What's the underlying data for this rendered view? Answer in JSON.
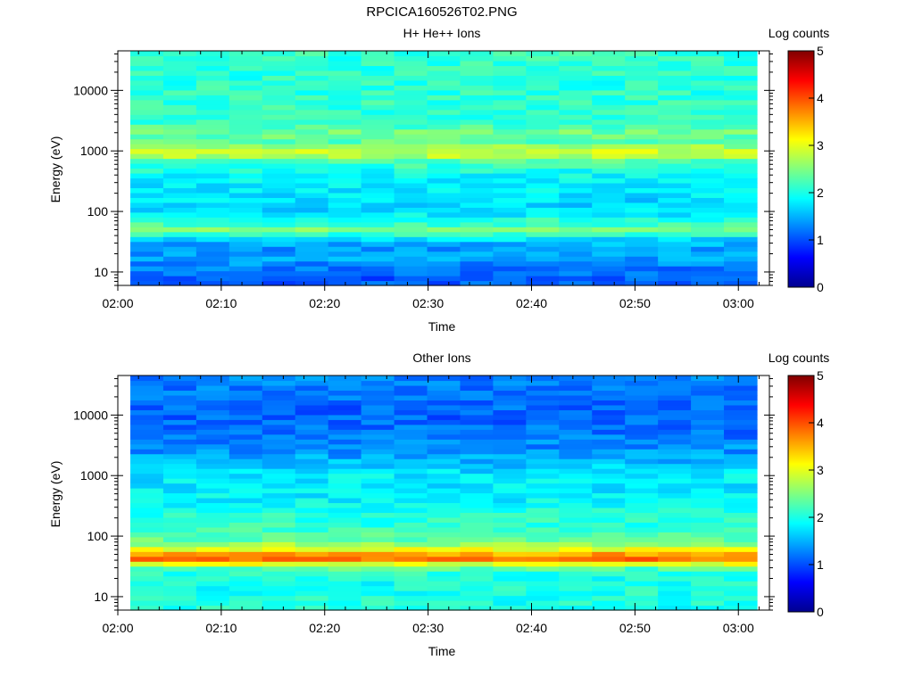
{
  "figure": {
    "title": "RPCICA160526T02.PNG"
  },
  "colormap_stops": [
    "#00008f",
    "#0000ff",
    "#0080ff",
    "#00ffff",
    "#80ff80",
    "#ffff00",
    "#ff8000",
    "#ff0000",
    "#800000"
  ],
  "chart_data": [
    {
      "type": "heatmap",
      "title": "H+ He++ Ions",
      "xlabel": "Time",
      "ylabel": "Energy (eV)",
      "colorbar_label": "Log counts",
      "colorbar_ticks": [
        "0",
        "1",
        "2",
        "3",
        "4",
        "5"
      ],
      "colorbar_range": [
        0,
        5
      ],
      "x_ticks": [
        "02:00",
        "02:10",
        "02:20",
        "02:30",
        "02:40",
        "02:50",
        "03:00"
      ],
      "x_range": [
        "02:00",
        "03:03"
      ],
      "y_ticks": [
        "10",
        "100",
        "1000",
        "10000"
      ],
      "y_scale": "log",
      "y_range_eV": [
        6,
        45000
      ],
      "time_bins": 19,
      "energy_profile": [
        {
          "e": 8,
          "v": 1.05
        },
        {
          "e": 12,
          "v": 1.25
        },
        {
          "e": 18,
          "v": 1.45
        },
        {
          "e": 25,
          "v": 1.35
        },
        {
          "e": 32,
          "v": 1.55
        },
        {
          "e": 40,
          "v": 1.95
        },
        {
          "e": 48,
          "v": 2.5
        },
        {
          "e": 60,
          "v": 2.2
        },
        {
          "e": 75,
          "v": 2.05
        },
        {
          "e": 95,
          "v": 1.75
        },
        {
          "e": 130,
          "v": 1.65
        },
        {
          "e": 180,
          "v": 1.75
        },
        {
          "e": 250,
          "v": 1.8
        },
        {
          "e": 350,
          "v": 1.85
        },
        {
          "e": 500,
          "v": 2.0
        },
        {
          "e": 700,
          "v": 2.3
        },
        {
          "e": 900,
          "v": 2.95
        },
        {
          "e": 1100,
          "v": 2.75
        },
        {
          "e": 1500,
          "v": 2.25
        },
        {
          "e": 2000,
          "v": 2.45
        },
        {
          "e": 3000,
          "v": 2.1
        },
        {
          "e": 6000,
          "v": 2.1
        },
        {
          "e": 15000,
          "v": 2.05
        },
        {
          "e": 40000,
          "v": 2.1
        }
      ]
    },
    {
      "type": "heatmap",
      "title": "Other Ions",
      "xlabel": "Time",
      "ylabel": "Energy (eV)",
      "colorbar_label": "Log counts",
      "colorbar_ticks": [
        "0",
        "1",
        "2",
        "3",
        "4",
        "5"
      ],
      "colorbar_range": [
        0,
        5
      ],
      "x_ticks": [
        "02:00",
        "02:10",
        "02:20",
        "02:30",
        "02:40",
        "02:50",
        "03:00"
      ],
      "x_range": [
        "02:00",
        "03:03"
      ],
      "y_ticks": [
        "10",
        "100",
        "1000",
        "10000"
      ],
      "y_scale": "log",
      "y_range_eV": [
        6,
        45000
      ],
      "time_bins": 19,
      "energy_profile": [
        {
          "e": 8,
          "v": 2.0
        },
        {
          "e": 12,
          "v": 2.0
        },
        {
          "e": 18,
          "v": 1.95
        },
        {
          "e": 25,
          "v": 2.05
        },
        {
          "e": 32,
          "v": 2.4
        },
        {
          "e": 38,
          "v": 3.5
        },
        {
          "e": 45,
          "v": 4.0
        },
        {
          "e": 55,
          "v": 3.3
        },
        {
          "e": 68,
          "v": 2.8
        },
        {
          "e": 85,
          "v": 2.4
        },
        {
          "e": 110,
          "v": 2.2
        },
        {
          "e": 150,
          "v": 2.1
        },
        {
          "e": 250,
          "v": 2.0
        },
        {
          "e": 400,
          "v": 1.85
        },
        {
          "e": 700,
          "v": 1.75
        },
        {
          "e": 1000,
          "v": 1.8
        },
        {
          "e": 1500,
          "v": 1.6
        },
        {
          "e": 2500,
          "v": 1.35
        },
        {
          "e": 5000,
          "v": 1.2
        },
        {
          "e": 10000,
          "v": 1.1
        },
        {
          "e": 20000,
          "v": 1.15
        },
        {
          "e": 40000,
          "v": 1.25
        }
      ]
    }
  ]
}
